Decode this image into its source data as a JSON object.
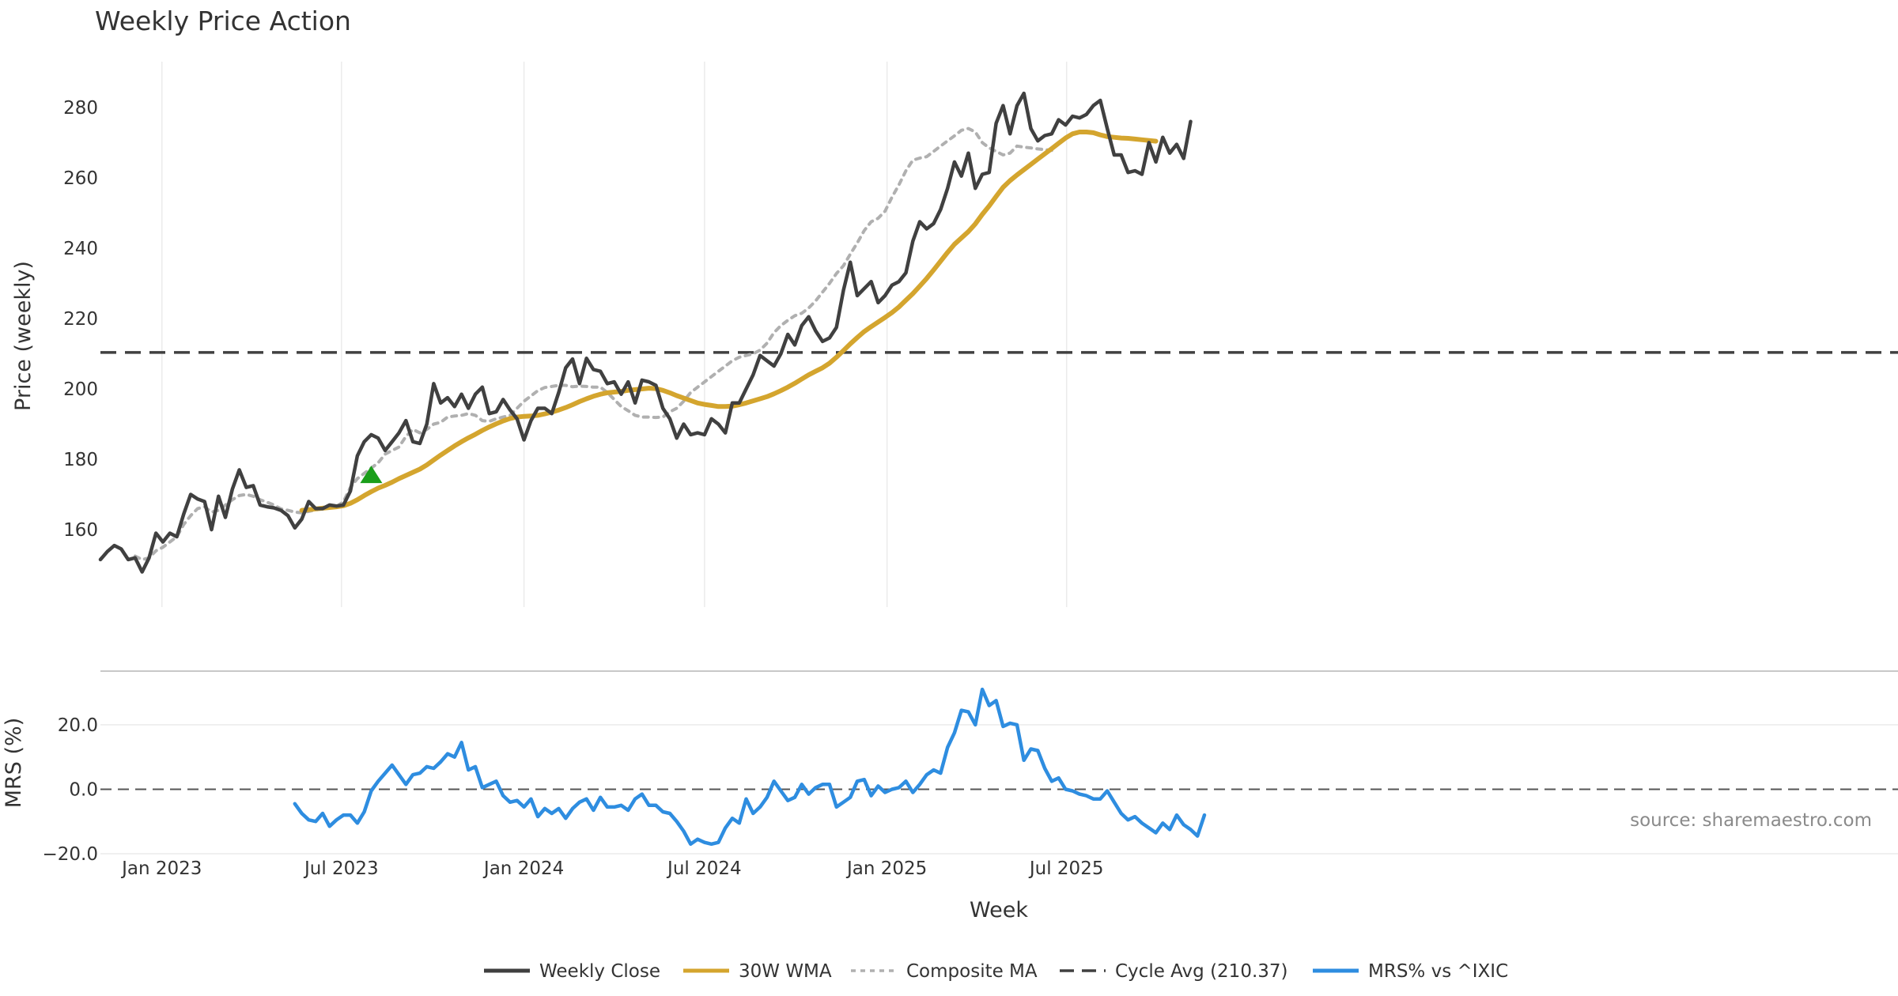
{
  "chart_data": [
    {
      "type": "line",
      "title": "Weekly Price Action",
      "xlabel": "Week",
      "ylabel": "Price (weekly)",
      "ylim": [
        138,
        293
      ],
      "yticks": [
        "160",
        "180",
        "200",
        "220",
        "240",
        "260",
        "280"
      ],
      "ytick_values": [
        160,
        180,
        200,
        220,
        240,
        260,
        280
      ],
      "x_start": "2022-10-31",
      "x_step_weeks": 1,
      "reference_line": {
        "name": "Cycle Avg (210.37)",
        "value": 210.37
      },
      "signal_marker": {
        "week_index": 39,
        "value": 175.5,
        "color": "#1a9e1a",
        "shape": "triangle-up"
      },
      "series": [
        {
          "name": "Weekly Close",
          "color": "#404040",
          "values": [
            151.5,
            153.8,
            155.5,
            154.5,
            151.5,
            152.0,
            148.0,
            152.0,
            159.0,
            156.5,
            159.0,
            158.0,
            164.5,
            170.0,
            168.7,
            168.0,
            160.0,
            169.5,
            163.5,
            171.5,
            177.0,
            172.0,
            172.5,
            167.0,
            166.5,
            166.2,
            165.5,
            164.0,
            160.5,
            163.0,
            168.0,
            166.0,
            166.0,
            167.0,
            166.7,
            167.0,
            171.0,
            181.0,
            185.0,
            187.0,
            186.0,
            182.5,
            185.0,
            187.5,
            191.0,
            185.0,
            184.5,
            190.0,
            201.5,
            196.0,
            197.5,
            195.0,
            198.5,
            194.5,
            198.5,
            200.5,
            193.0,
            193.5,
            197.0,
            194.0,
            191.5,
            185.5,
            191.0,
            194.5,
            194.5,
            193.0,
            199.0,
            206.0,
            208.5,
            201.5,
            208.7,
            205.5,
            205.0,
            201.5,
            202.0,
            198.5,
            202.0,
            196.0,
            202.5,
            202.0,
            201.0,
            194.5,
            191.5,
            186.0,
            190.0,
            187.0,
            187.5,
            187.0,
            191.5,
            190.0,
            187.5,
            196.0,
            196.0,
            200.0,
            204.0,
            209.5,
            208.0,
            206.5,
            210.0,
            215.5,
            212.5,
            218.0,
            220.5,
            216.5,
            213.5,
            214.5,
            217.5,
            228.0,
            236.0,
            226.5,
            228.5,
            230.5,
            224.5,
            226.5,
            229.5,
            230.5,
            233.0,
            242.0,
            247.5,
            245.5,
            247.0,
            251.0,
            257.0,
            264.5,
            260.5,
            267.0,
            257.0,
            261.0,
            261.5,
            275.5,
            280.5,
            272.5,
            280.5,
            284.0,
            274.0,
            270.5,
            272.0,
            272.5,
            276.5,
            275.0,
            277.5,
            277.0,
            278.0,
            280.5,
            282.0,
            274.0,
            266.5,
            266.5,
            261.5,
            262.0,
            261.0,
            270.0,
            264.5,
            271.5,
            267.0,
            269.5,
            265.5,
            276.0
          ]
        },
        {
          "name": "30W WMA",
          "color": "#d4a52e",
          "start_index": 29,
          "values": [
            165.5,
            165.7,
            165.9,
            166.1,
            166.3,
            166.5,
            166.8,
            167.5,
            168.5,
            169.7,
            170.8,
            171.8,
            172.6,
            173.5,
            174.5,
            175.4,
            176.3,
            177.2,
            178.4,
            179.8,
            181.2,
            182.5,
            183.8,
            185.0,
            186.1,
            187.1,
            188.2,
            189.2,
            190.1,
            190.9,
            191.6,
            192.0,
            192.2,
            192.3,
            192.5,
            192.9,
            193.4,
            194.0,
            194.7,
            195.5,
            196.4,
            197.2,
            197.9,
            198.5,
            198.9,
            199.1,
            199.3,
            199.6,
            199.8,
            200.0,
            200.2,
            200.1,
            199.6,
            198.9,
            198.1,
            197.4,
            196.7,
            196.0,
            195.6,
            195.3,
            195.0,
            195.0,
            195.1,
            195.5,
            196.0,
            196.6,
            197.2,
            197.8,
            198.6,
            199.5,
            200.5,
            201.6,
            202.8,
            204.0,
            205.0,
            206.0,
            207.3,
            209.0,
            210.9,
            212.8,
            214.6,
            216.3,
            217.7,
            219.0,
            220.3,
            221.7,
            223.3,
            225.2,
            227.1,
            229.2,
            231.4,
            233.8,
            236.3,
            238.8,
            241.1,
            242.9,
            244.7,
            246.9,
            249.6,
            252.0,
            254.7,
            257.3,
            259.2,
            260.8,
            262.3,
            263.8,
            265.3,
            266.8,
            268.3,
            269.8,
            271.3,
            272.5,
            273.0,
            273.0,
            272.8,
            272.2,
            271.7,
            271.5,
            271.3,
            271.2,
            271.0,
            270.8,
            270.6,
            270.4
          ]
        },
        {
          "name": "Composite MA",
          "color": "#b0b0b0",
          "start_index": 5,
          "values": [
            152.5,
            151.5,
            152.0,
            154.0,
            155.0,
            156.5,
            158.0,
            161.5,
            164.0,
            166.0,
            166.5,
            165.0,
            165.5,
            167.0,
            168.5,
            169.7,
            170.0,
            169.5,
            168.5,
            167.8,
            167.0,
            165.9,
            165.5,
            165.0,
            164.8,
            165.2,
            165.6,
            166.0,
            166.3,
            166.5,
            168.0,
            172.0,
            174.5,
            176.0,
            177.5,
            179.0,
            181.5,
            182.5,
            183.5,
            186.5,
            188.5,
            187.5,
            188.5,
            190.0,
            190.5,
            192.0,
            192.3,
            192.5,
            193.0,
            192.5,
            191.0,
            190.8,
            191.5,
            192.0,
            192.5,
            194.5,
            196.5,
            198.0,
            199.5,
            200.4,
            200.7,
            201.0,
            201.0,
            200.6,
            200.8,
            200.7,
            200.5,
            200.5,
            199.0,
            197.0,
            195.0,
            193.8,
            192.5,
            192.0,
            192.0,
            191.9,
            192.0,
            193.5,
            194.5,
            196.5,
            199.0,
            200.5,
            202.0,
            203.5,
            205.0,
            206.5,
            208.0,
            209.0,
            209.5,
            210.0,
            211.0,
            213.0,
            216.0,
            218.0,
            219.5,
            220.8,
            221.5,
            223.0,
            225.0,
            227.5,
            230.0,
            232.8,
            235.0,
            238.3,
            241.5,
            245.0,
            247.5,
            248.5,
            250.5,
            254.5,
            258.0,
            262.0,
            265.0,
            265.6,
            266.0,
            267.5,
            269.0,
            270.5,
            271.9,
            273.5,
            274.0,
            273.0,
            270.0,
            268.5,
            267.5,
            266.5,
            267.0,
            269.0,
            268.7,
            268.5,
            268.2,
            268.0,
            267.8
          ]
        }
      ]
    },
    {
      "type": "line",
      "title": "",
      "xlabel": "Week",
      "ylabel": "MRS (%)",
      "ylim": [
        -20,
        32
      ],
      "yticks": [
        "20.0",
        "0.0",
        "−20.0"
      ],
      "ytick_values": [
        20,
        0,
        -20
      ],
      "x_start": "2022-10-31",
      "x_step_weeks": 1,
      "xticks": [
        "Jan 2023",
        "Jul 2023",
        "Jan 2024",
        "Jul 2024",
        "Jan 2025",
        "Jul 2025"
      ],
      "xtick_dates": [
        "2023-01-01",
        "2023-07-01",
        "2024-01-01",
        "2024-07-01",
        "2025-01-01",
        "2025-07-01"
      ],
      "reference_line": {
        "name": "zero",
        "value": 0
      },
      "series": [
        {
          "name": "MRS% vs ^IXIC",
          "color": "#2e8de0",
          "start_index": 28,
          "values": [
            -4.5,
            -7.5,
            -9.5,
            -10.0,
            -7.5,
            -11.5,
            -9.5,
            -8.0,
            -8.0,
            -10.5,
            -7.0,
            -0.5,
            2.5,
            5.0,
            7.5,
            4.5,
            1.5,
            4.5,
            5.0,
            7.0,
            6.5,
            8.5,
            11.0,
            10.0,
            14.5,
            6.0,
            7.0,
            0.5,
            1.5,
            2.5,
            -2.0,
            -4.0,
            -3.5,
            -5.5,
            -3.0,
            -8.5,
            -6.0,
            -7.5,
            -6.0,
            -9.0,
            -6.0,
            -4.0,
            -3.0,
            -6.5,
            -2.5,
            -5.5,
            -5.5,
            -5.0,
            -6.5,
            -3.0,
            -1.5,
            -5.0,
            -5.0,
            -7.0,
            -7.5,
            -10.0,
            -13.0,
            -17.0,
            -15.5,
            -16.5,
            -17.0,
            -16.5,
            -12.0,
            -9.0,
            -10.5,
            -3.0,
            -7.5,
            -5.5,
            -2.5,
            2.5,
            -0.5,
            -3.5,
            -2.5,
            1.5,
            -1.5,
            0.5,
            1.5,
            1.5,
            -5.5,
            -4.0,
            -2.5,
            2.5,
            3.0,
            -2.0,
            1.0,
            -1.0,
            0.0,
            0.5,
            2.5,
            -1.0,
            1.5,
            4.5,
            6.0,
            5.0,
            13.0,
            17.5,
            24.5,
            24.0,
            20.0,
            31.0,
            26.0,
            27.5,
            19.5,
            20.5,
            20.0,
            9.0,
            12.5,
            12.0,
            6.5,
            2.5,
            3.5,
            0.0,
            -0.5,
            -1.5,
            -2.0,
            -3.0,
            -3.0,
            -0.5,
            -4.0,
            -7.5,
            -9.5,
            -8.5,
            -10.5,
            -12.0,
            -13.5,
            -10.5,
            -12.5,
            -8.0,
            -11.0,
            -12.5,
            -14.5,
            -8.0
          ]
        }
      ]
    }
  ],
  "legend": [
    {
      "label": "Weekly Close",
      "style": "solid",
      "color": "#404040"
    },
    {
      "label": "30W WMA",
      "style": "solid",
      "color": "#d4a52e"
    },
    {
      "label": "Composite MA",
      "style": "dotted",
      "color": "#b0b0b0"
    },
    {
      "label": "Cycle Avg (210.37)",
      "style": "dashed",
      "color": "#404040"
    },
    {
      "label": "MRS% vs ^IXIC",
      "style": "solid",
      "color": "#2e8de0"
    }
  ],
  "source_text": "source: sharemaestro.com"
}
